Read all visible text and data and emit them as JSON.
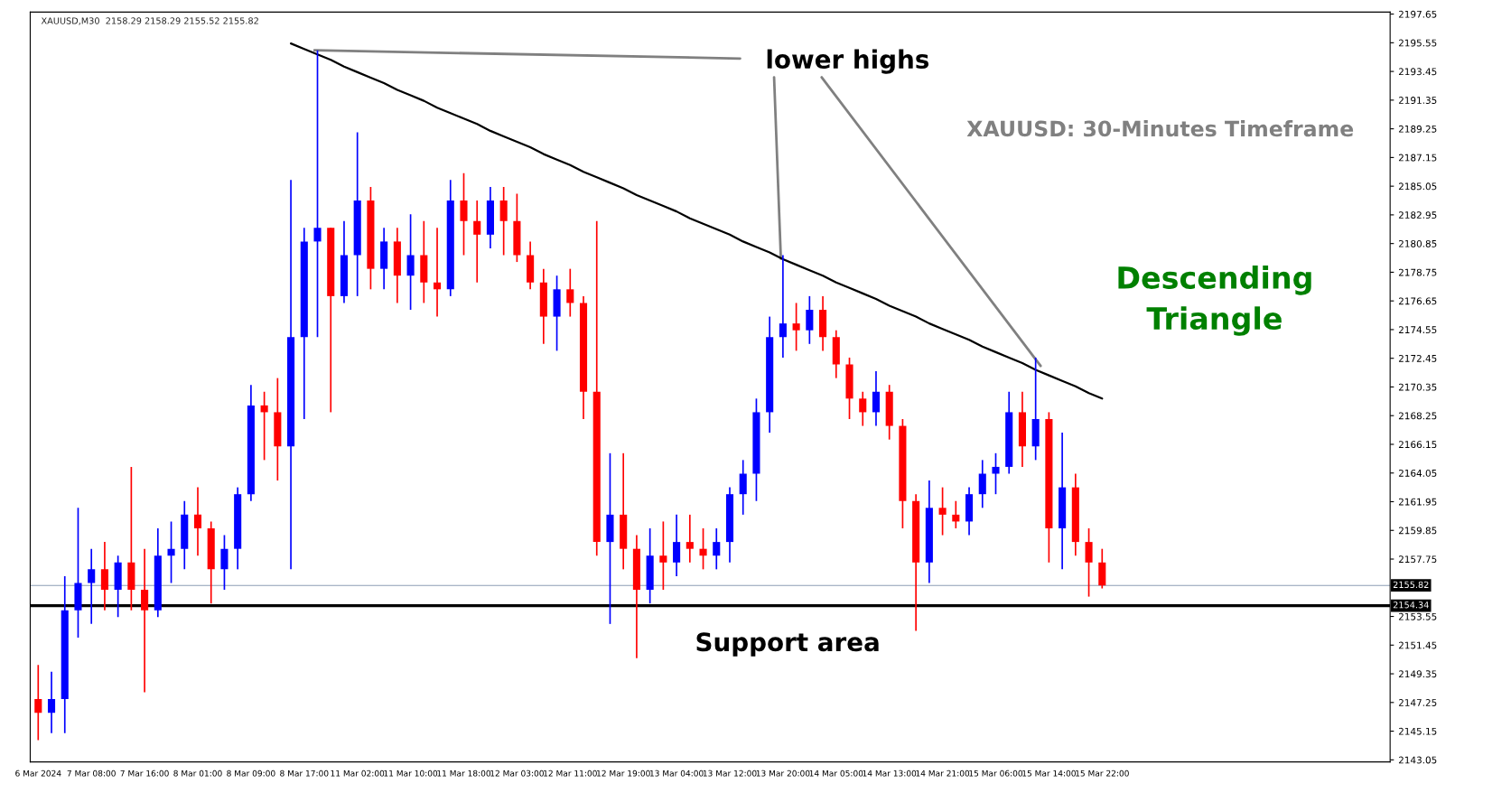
{
  "chart_data": {
    "type": "candlestick",
    "title": "XAUUSD,M30  2158.29 2158.29 2155.52 2155.82",
    "categories": [
      "6 Mar 2024",
      null,
      null,
      null,
      "7 Mar 08:00",
      null,
      null,
      null,
      "7 Mar 16:00",
      null,
      null,
      null,
      "8 Mar 01:00",
      null,
      null,
      null,
      "8 Mar 09:00",
      null,
      null,
      null,
      "8 Mar 17:00",
      null,
      null,
      null,
      "11 Mar 02:00",
      null,
      null,
      null,
      "11 Mar 10:00",
      null,
      null,
      null,
      "11 Mar 18:00",
      null,
      null,
      null,
      "12 Mar 03:00",
      null,
      null,
      null,
      "12 Mar 11:00",
      null,
      null,
      null,
      "12 Mar 19:00",
      null,
      null,
      null,
      "13 Mar 04:00",
      null,
      null,
      null,
      "13 Mar 12:00",
      null,
      null,
      null,
      "13 Mar 20:00",
      null,
      null,
      null,
      "14 Mar 05:00",
      null,
      null,
      null,
      "14 Mar 13:00",
      null,
      null,
      null,
      "14 Mar 21:00",
      null,
      null,
      null,
      "15 Mar 06:00",
      null,
      null,
      null,
      "15 Mar 14:00",
      null,
      null,
      null,
      "15 Mar 22:00"
    ],
    "ohlc": [
      [
        2147.5,
        2150,
        2144.5,
        2146.5
      ],
      [
        2146.5,
        2149.5,
        2145,
        2147.5
      ],
      [
        2147.5,
        2156.5,
        2145,
        2154
      ],
      [
        2154,
        2161.5,
        2152,
        2156
      ],
      [
        2156,
        2158.5,
        2153,
        2157
      ],
      [
        2157,
        2159,
        2154,
        2155.5
      ],
      [
        2155.5,
        2158,
        2153.5,
        2157.5
      ],
      [
        2157.5,
        2164.5,
        2154,
        2155.5
      ],
      [
        2155.5,
        2158.5,
        2148,
        2154
      ],
      [
        2154,
        2160,
        2153.5,
        2158
      ],
      [
        2158,
        2160.5,
        2156,
        2158.5
      ],
      [
        2158.5,
        2162,
        2157,
        2161
      ],
      [
        2161,
        2163,
        2158,
        2160
      ],
      [
        2160,
        2160.5,
        2154.5,
        2157
      ],
      [
        2157,
        2159.5,
        2155.5,
        2158.5
      ],
      [
        2158.5,
        2163,
        2157,
        2162.5
      ],
      [
        2162.5,
        2170.5,
        2162,
        2169
      ],
      [
        2169,
        2170,
        2165,
        2168.5
      ],
      [
        2168.5,
        2171,
        2163.5,
        2166
      ],
      [
        2166,
        2185.5,
        2157,
        2174
      ],
      [
        2174,
        2182,
        2168,
        2181
      ],
      [
        2181,
        2195,
        2174,
        2182
      ],
      [
        2182,
        2182,
        2168.5,
        2177
      ],
      [
        2177,
        2182.5,
        2176.5,
        2180
      ],
      [
        2180,
        2189,
        2177,
        2184
      ],
      [
        2184,
        2185,
        2177.5,
        2179
      ],
      [
        2179,
        2182,
        2177.5,
        2181
      ],
      [
        2181,
        2182,
        2176.5,
        2178.5
      ],
      [
        2178.5,
        2183,
        2176,
        2180
      ],
      [
        2180,
        2182.5,
        2176.5,
        2178
      ],
      [
        2178,
        2182,
        2175.5,
        2177.5
      ],
      [
        2177.5,
        2185.5,
        2177,
        2184
      ],
      [
        2184,
        2186,
        2180,
        2182.5
      ],
      [
        2182.5,
        2184,
        2178,
        2181.5
      ],
      [
        2181.5,
        2185,
        2180.5,
        2184
      ],
      [
        2184,
        2185,
        2180,
        2182.5
      ],
      [
        2182.5,
        2184.5,
        2179.5,
        2180
      ],
      [
        2180,
        2181,
        2177.5,
        2178
      ],
      [
        2178,
        2179,
        2173.5,
        2175.5
      ],
      [
        2175.5,
        2178.5,
        2173,
        2177.5
      ],
      [
        2177.5,
        2179,
        2175.5,
        2176.5
      ],
      [
        2176.5,
        2177,
        2168,
        2170
      ],
      [
        2170,
        2182.5,
        2158,
        2159
      ],
      [
        2159,
        2165.5,
        2153,
        2161
      ],
      [
        2161,
        2165.5,
        2157,
        2158.5
      ],
      [
        2158.5,
        2159.5,
        2150.5,
        2155.5
      ],
      [
        2155.5,
        2160,
        2154.5,
        2158
      ],
      [
        2158,
        2160.5,
        2155.5,
        2157.5
      ],
      [
        2157.5,
        2161,
        2156.5,
        2159
      ],
      [
        2159,
        2161,
        2157.5,
        2158.5
      ],
      [
        2158.5,
        2160,
        2157,
        2158
      ],
      [
        2158,
        2160,
        2157,
        2159
      ],
      [
        2159,
        2163,
        2157.5,
        2162.5
      ],
      [
        2162.5,
        2165,
        2161,
        2164
      ],
      [
        2164,
        2169.5,
        2162,
        2168.5
      ],
      [
        2168.5,
        2175.5,
        2167,
        2174
      ],
      [
        2174,
        2180,
        2172.5,
        2175
      ],
      [
        2175,
        2176.5,
        2173,
        2174.5
      ],
      [
        2174.5,
        2177,
        2173.5,
        2176
      ],
      [
        2176,
        2177,
        2173,
        2174
      ],
      [
        2174,
        2174.5,
        2171,
        2172
      ],
      [
        2172,
        2172.5,
        2168,
        2169.5
      ],
      [
        2169.5,
        2170,
        2167.5,
        2168.5
      ],
      [
        2168.5,
        2171.5,
        2167.5,
        2170
      ],
      [
        2170,
        2170.5,
        2166.5,
        2167.5
      ],
      [
        2167.5,
        2168,
        2160,
        2162
      ],
      [
        2162,
        2162.5,
        2152.5,
        2157.5
      ],
      [
        2157.5,
        2163.5,
        2156,
        2161.5
      ],
      [
        2161.5,
        2163,
        2159.5,
        2161
      ],
      [
        2161,
        2162,
        2160,
        2160.5
      ],
      [
        2160.5,
        2163,
        2159.5,
        2162.5
      ],
      [
        2162.5,
        2165,
        2161.5,
        2164
      ],
      [
        2164,
        2165.5,
        2162.5,
        2164.5
      ],
      [
        2164.5,
        2170,
        2164,
        2168.5
      ],
      [
        2168.5,
        2170,
        2164.5,
        2166
      ],
      [
        2166,
        2172.5,
        2165,
        2168
      ],
      [
        2168,
        2168.5,
        2157.5,
        2160
      ],
      [
        2160,
        2167,
        2157,
        2163
      ],
      [
        2163,
        2164,
        2158,
        2159
      ],
      [
        2159,
        2160,
        2155,
        2157.5
      ],
      [
        2157.5,
        2158.5,
        2155.6,
        2155.82
      ]
    ],
    "colors": [
      "#ff0000",
      "#0000ff",
      "#0000ff",
      "#0000ff",
      "#0000ff",
      "#ff0000",
      "#0000ff",
      "#ff0000",
      "#ff0000",
      "#0000ff",
      "#0000ff",
      "#0000ff",
      "#ff0000",
      "#ff0000",
      "#0000ff",
      "#0000ff",
      "#0000ff",
      "#ff0000",
      "#ff0000",
      "#0000ff",
      "#0000ff",
      "#0000ff",
      "#ff0000",
      "#0000ff",
      "#0000ff",
      "#ff0000",
      "#0000ff",
      "#ff0000",
      "#0000ff",
      "#ff0000",
      "#ff0000",
      "#0000ff",
      "#ff0000",
      "#ff0000",
      "#0000ff",
      "#ff0000",
      "#ff0000",
      "#ff0000",
      "#ff0000",
      "#0000ff",
      "#ff0000",
      "#ff0000",
      "#ff0000",
      "#0000ff",
      "#ff0000",
      "#ff0000",
      "#0000ff",
      "#ff0000",
      "#0000ff",
      "#ff0000",
      "#ff0000",
      "#0000ff",
      "#0000ff",
      "#0000ff",
      "#0000ff",
      "#0000ff",
      "#0000ff",
      "#ff0000",
      "#0000ff",
      "#ff0000",
      "#ff0000",
      "#ff0000",
      "#ff0000",
      "#0000ff",
      "#ff0000",
      "#ff0000",
      "#ff0000",
      "#0000ff",
      "#ff0000",
      "#ff0000",
      "#0000ff",
      "#0000ff",
      "#0000ff",
      "#0000ff",
      "#ff0000",
      "#0000ff",
      "#ff0000",
      "#0000ff",
      "#ff0000",
      "#ff0000",
      "#ff0000"
    ],
    "series": [
      {
        "type": "line",
        "color": "#000000",
        "values": [
          null,
          null,
          null,
          null,
          null,
          null,
          null,
          null,
          null,
          null,
          null,
          null,
          null,
          null,
          null,
          null,
          null,
          null,
          null,
          2195.5,
          2195.1,
          2194.7,
          2194.3,
          2193.8,
          2193.4,
          2193.0,
          2192.6,
          2192.1,
          2191.7,
          2191.3,
          2190.8,
          2190.4,
          2190.0,
          2189.6,
          2189.1,
          2188.7,
          2188.3,
          2187.9,
          2187.4,
          2187.0,
          2186.6,
          2186.1,
          2185.7,
          2185.3,
          2184.9,
          2184.4,
          2184.0,
          2183.6,
          2183.2,
          2182.7,
          2182.3,
          2181.9,
          2181.5,
          2181.0,
          2180.6,
          2180.2,
          2179.7,
          2179.3,
          2178.9,
          2178.5,
          2178.0,
          2177.6,
          2177.2,
          2176.8,
          2176.3,
          2175.9,
          2175.5,
          2175.0,
          2174.6,
          2174.2,
          2173.8,
          2173.3,
          2172.9,
          2172.5,
          2172.1,
          2171.6,
          2171.2,
          2170.8,
          2170.4,
          2169.9,
          2169.5
        ]
      }
    ],
    "ylim": [
      2142.9,
      2197.8
    ],
    "yticks": [
      2197.65,
      2195.55,
      2193.45,
      2191.35,
      2189.25,
      2187.15,
      2185.05,
      2182.95,
      2180.85,
      2178.75,
      2176.65,
      2174.55,
      2172.45,
      2170.35,
      2168.25,
      2166.15,
      2164.05,
      2161.95,
      2159.85,
      2157.75,
      2153.55,
      2151.45,
      2149.35,
      2147.25,
      2145.15,
      2143.05
    ],
    "ref_lines": [
      {
        "axis": "y",
        "value": 2155.82,
        "label": "2155.82",
        "color": "#8c9db5"
      },
      {
        "axis": "y",
        "value": 2154.34,
        "label": "2154.34",
        "color": "#000000"
      }
    ],
    "annotations": [
      "Support area",
      "XAUUSD: 30-Minutes Timeframe",
      "Descending\nTriangle",
      "lower highs"
    ],
    "grid": false
  }
}
